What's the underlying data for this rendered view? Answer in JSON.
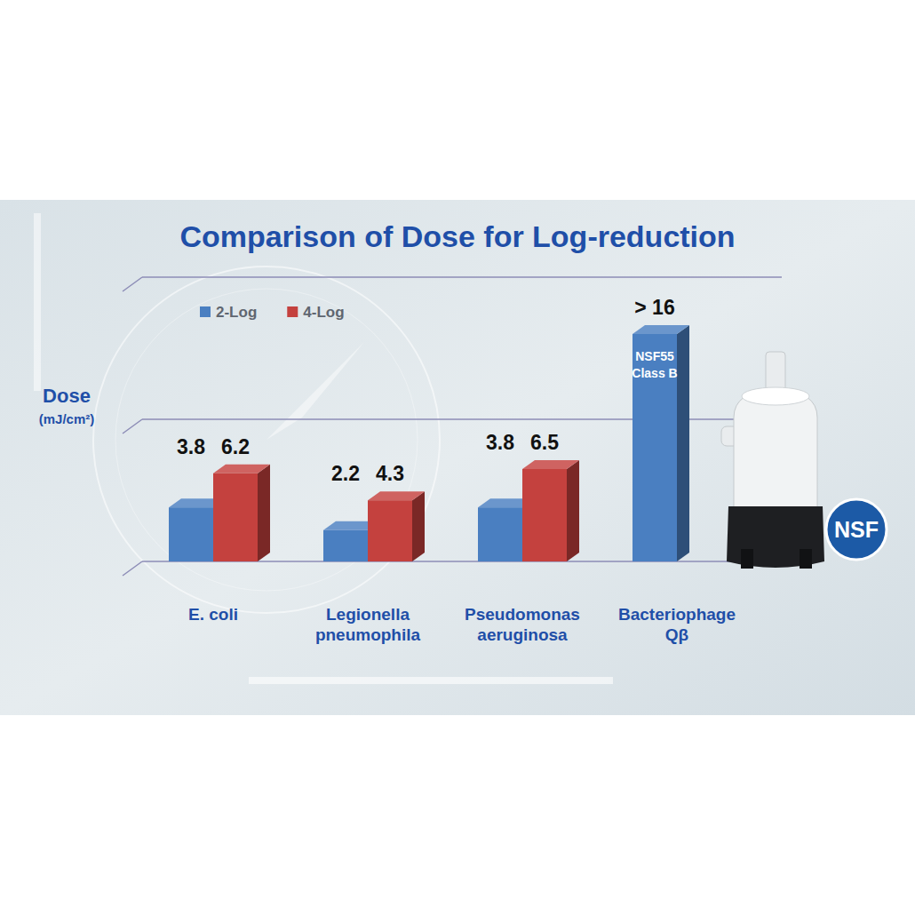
{
  "chart_data": {
    "type": "bar",
    "title": "Comparison of Dose for Log-reduction",
    "y_label": "Dose (mJ/cm²)",
    "categories": [
      "E. coli",
      "Legionella pneumophila",
      "Pseudomonas aeruginosa",
      "Bacteriophage Qβ"
    ],
    "series": [
      {
        "name": "2-Log",
        "color": "#4a7fc1",
        "values": [
          3.8,
          2.2,
          3.8,
          16
        ],
        "value_labels": [
          "3.8",
          "2.2",
          "3.8",
          "> 16"
        ]
      },
      {
        "name": "4-Log",
        "color": "#c4413e",
        "values": [
          6.2,
          4.3,
          6.5,
          null
        ]
      }
    ],
    "ylim": [
      0,
      20
    ],
    "yticks": [
      0,
      10,
      20
    ],
    "grid": true,
    "tick_labels": "x",
    "data_labels": true,
    "legend": "upper left",
    "annotations": [
      "NSF55 Class B",
      "NSF"
    ]
  }
}
